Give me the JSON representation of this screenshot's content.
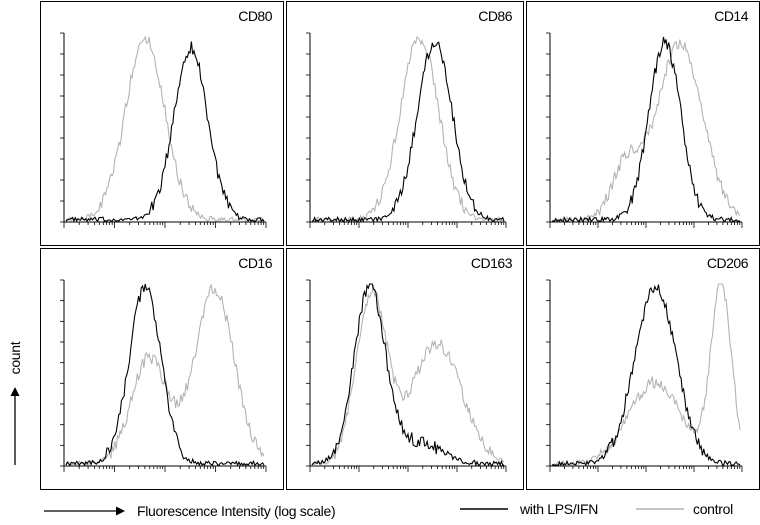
{
  "chart_data": {
    "type": "line",
    "description_axes": {
      "xlabel": "Fluorescence Intensity (log scale)",
      "ylabel": "count",
      "xscale": "log"
    },
    "legend": {
      "position": "bottom-right",
      "items": [
        {
          "name": "with LPS/IFN",
          "color": "#000000"
        },
        {
          "name": "control",
          "color": "#b4b4b4"
        }
      ]
    },
    "panels": [
      {
        "title": "CD80",
        "series": [
          {
            "name": "with LPS/IFN",
            "peak": 0.63,
            "width": 0.085,
            "height": 0.93,
            "shoulder": null
          },
          {
            "name": "control",
            "peak": 0.4,
            "width": 0.1,
            "height": 0.98,
            "shoulder": null
          }
        ]
      },
      {
        "title": "CD86",
        "series": [
          {
            "name": "with LPS/IFN",
            "peak": 0.64,
            "width": 0.09,
            "height": 0.97,
            "shoulder": null
          },
          {
            "name": "control",
            "peak": 0.56,
            "width": 0.1,
            "height": 0.98,
            "shoulder": null
          }
        ]
      },
      {
        "title": "CD14",
        "series": [
          {
            "name": "with LPS/IFN",
            "peak": 0.6,
            "width": 0.085,
            "height": 0.96,
            "shoulder": null
          },
          {
            "name": "control",
            "peak": 0.68,
            "width": 0.12,
            "height": 0.95,
            "shoulder": {
              "pos": 0.4,
              "height": 0.3,
              "width": 0.08
            }
          }
        ]
      },
      {
        "title": "CD16",
        "series": [
          {
            "name": "with LPS/IFN",
            "peak": 0.4,
            "width": 0.08,
            "height": 0.97,
            "shoulder": null
          },
          {
            "name": "control",
            "peak": 0.75,
            "width": 0.1,
            "height": 0.96,
            "shoulder": {
              "pos": 0.42,
              "height": 0.58,
              "width": 0.09
            }
          }
        ]
      },
      {
        "title": "CD163",
        "series": [
          {
            "name": "with LPS/IFN",
            "peak": 0.3,
            "width": 0.08,
            "height": 0.97,
            "shoulder": {
              "pos": 0.55,
              "height": 0.12,
              "width": 0.12
            }
          },
          {
            "name": "control",
            "peak": 0.31,
            "width": 0.08,
            "height": 0.93,
            "shoulder": {
              "pos": 0.65,
              "height": 0.66,
              "width": 0.13
            }
          }
        ]
      },
      {
        "title": "CD206",
        "series": [
          {
            "name": "with LPS/IFN",
            "peak": 0.55,
            "width": 0.11,
            "height": 0.97,
            "shoulder": null
          },
          {
            "name": "control",
            "peak": 0.9,
            "width": 0.055,
            "height": 0.97,
            "shoulder": {
              "pos": 0.55,
              "height": 0.45,
              "width": 0.14
            }
          }
        ]
      }
    ]
  }
}
